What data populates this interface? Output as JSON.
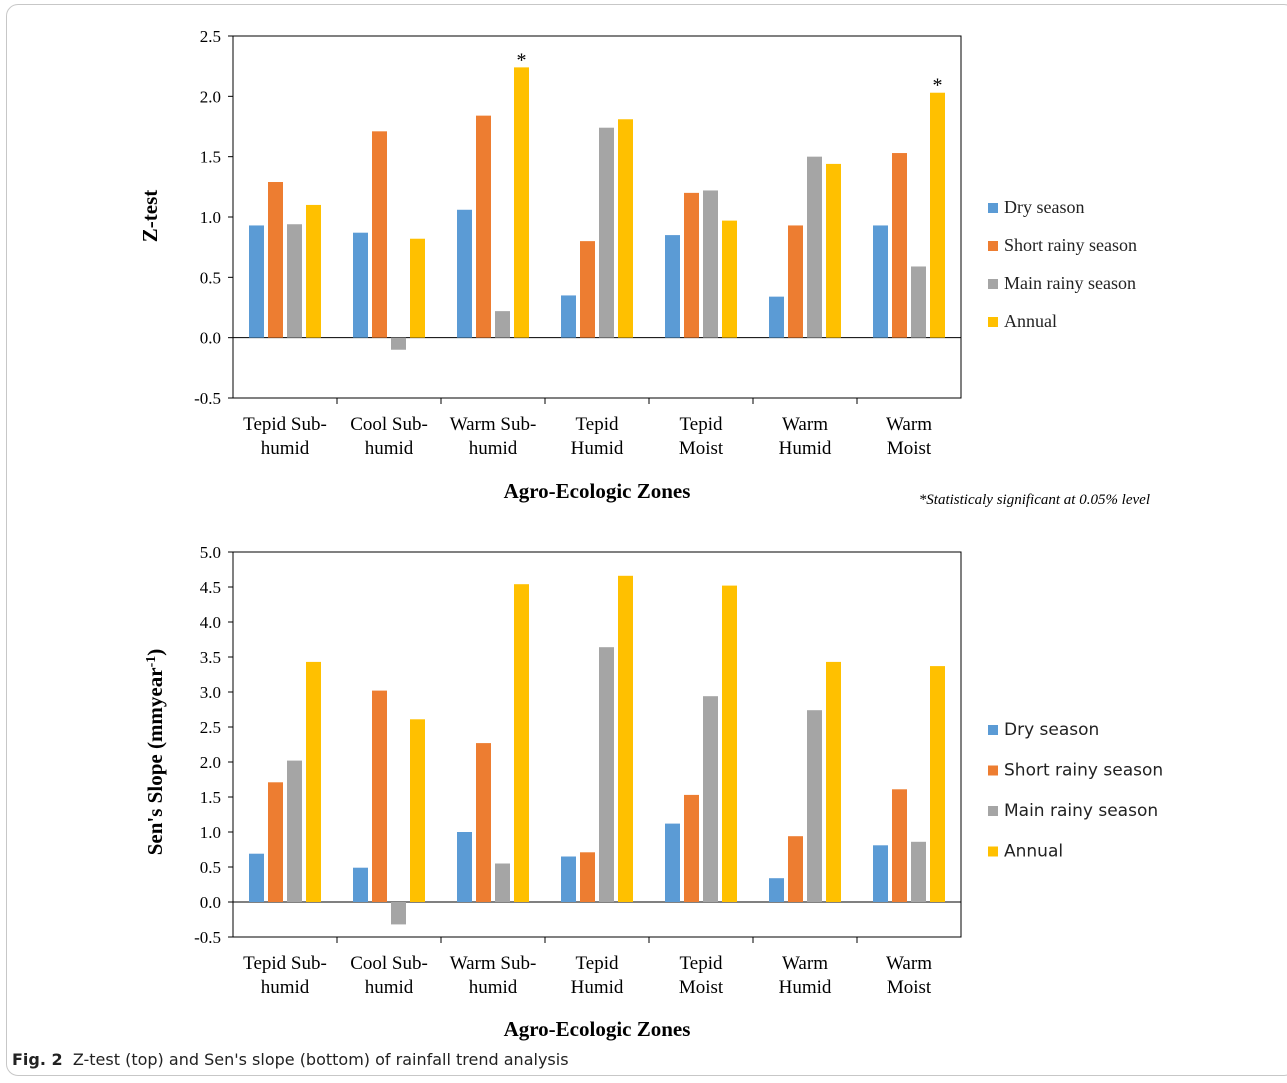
{
  "caption": {
    "label": "Fig. 2",
    "text": "Z-test (top) and Sen's slope (bottom) of rainfall trend analysis"
  },
  "colors": {
    "dry": "#5b9bd5",
    "short": "#ed7d31",
    "main": "#a5a5a5",
    "annual": "#ffc000"
  },
  "chart_data": [
    {
      "type": "bar",
      "title": "",
      "xlabel": "Agro-Ecologic Zones",
      "ylabel": "Z-test",
      "ylim": [
        -0.5,
        2.5
      ],
      "yticks": [
        "2.5",
        "2.0",
        "1.5",
        "1.0",
        "0.5",
        "0.0",
        "-0.5"
      ],
      "categories": [
        [
          "Tepid Sub-",
          "humid"
        ],
        [
          "Cool Sub-",
          "humid"
        ],
        [
          "Warm Sub-",
          "humid"
        ],
        [
          "Tepid",
          "Humid"
        ],
        [
          "Tepid",
          "Moist"
        ],
        [
          "Warm",
          "Humid"
        ],
        [
          "Warm",
          "Moist"
        ]
      ],
      "series": [
        {
          "name": "Dry season",
          "values": [
            0.93,
            0.87,
            1.06,
            0.35,
            0.85,
            0.34,
            0.93
          ]
        },
        {
          "name": "Short rainy season",
          "values": [
            1.29,
            1.71,
            1.84,
            0.8,
            1.2,
            0.93,
            1.53
          ]
        },
        {
          "name": "Main rainy season",
          "values": [
            0.94,
            -0.1,
            0.22,
            1.74,
            1.22,
            1.5,
            0.59
          ]
        },
        {
          "name": "Annual",
          "values": [
            1.1,
            0.82,
            2.24,
            1.81,
            0.97,
            1.44,
            2.03
          ]
        }
      ],
      "significance_marks": [
        {
          "category_index": 2,
          "series_index": 3,
          "mark": "*"
        },
        {
          "category_index": 6,
          "series_index": 3,
          "mark": "*"
        }
      ],
      "note": "*Statisticaly significant at 0.05% level",
      "legend_position": "right"
    },
    {
      "type": "bar",
      "title": "",
      "xlabel": "Agro-Ecologic Zones",
      "ylabel": "Sen's Slope (mmyear",
      "ylabel_sup": "-1",
      "ylabel_end": ")",
      "ylim": [
        -0.5,
        5.0
      ],
      "yticks": [
        "5.0",
        "4.5",
        "4.0",
        "3.5",
        "3.0",
        "2.5",
        "2.0",
        "1.5",
        "1.0",
        "0.5",
        "0.0",
        "-0.5"
      ],
      "categories": [
        [
          "Tepid Sub-",
          "humid"
        ],
        [
          "Cool Sub-",
          "humid"
        ],
        [
          "Warm Sub-",
          "humid"
        ],
        [
          "Tepid",
          "Humid"
        ],
        [
          "Tepid",
          "Moist"
        ],
        [
          "Warm",
          "Humid"
        ],
        [
          "Warm",
          "Moist"
        ]
      ],
      "series": [
        {
          "name": "Dry season",
          "values": [
            0.69,
            0.49,
            1.0,
            0.65,
            1.12,
            0.34,
            0.81
          ]
        },
        {
          "name": "Short rainy season",
          "values": [
            1.71,
            3.02,
            2.27,
            0.71,
            1.53,
            0.94,
            1.61
          ]
        },
        {
          "name": "Main rainy season",
          "values": [
            2.02,
            -0.32,
            0.55,
            3.64,
            2.94,
            2.74,
            0.86
          ]
        },
        {
          "name": "Annual",
          "values": [
            3.43,
            2.61,
            4.54,
            4.66,
            4.52,
            3.43,
            3.37
          ]
        }
      ],
      "legend_position": "right"
    }
  ]
}
